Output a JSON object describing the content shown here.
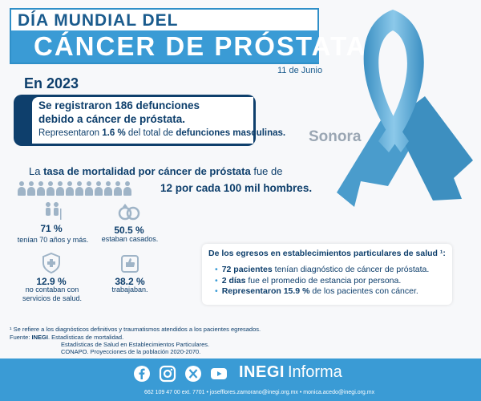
{
  "header": {
    "title_small": "DÍA MUNDIAL DEL",
    "title_big": "CÁNCER DE PRÓSTATA",
    "date": "11 de Junio"
  },
  "year": "En 2023",
  "region": "Sonora",
  "summary": {
    "line1": "Se registraron 186 defunciones",
    "line2": "debido a cáncer de próstata.",
    "line3_pre": "Representaron ",
    "line3_bold1": "1.6 %",
    "line3_mid": " del total de ",
    "line3_bold2": "defunciones masculinas."
  },
  "mortality": {
    "pre": "La ",
    "bold": "tasa de mortalidad por cáncer de próstata",
    "post": " fue de",
    "rate": "12 por cada 100 mil hombres.",
    "people_count": 12
  },
  "stats": [
    {
      "icon": "elderly-couple-icon",
      "value": "71 %",
      "label": "tenían 70 años y más."
    },
    {
      "icon": "wedding-rings-icon",
      "value": "50.5 %",
      "label": "estaban casados."
    },
    {
      "icon": "health-shield-icon",
      "value": "12.9 %",
      "label": "no contaban con servicios de salud."
    },
    {
      "icon": "work-icon",
      "value": "38.2 %",
      "label": "trabajaban."
    }
  ],
  "egresos": {
    "title": "De los egresos en establecimientos particulares de salud ¹:",
    "items": [
      {
        "bold": "72 pacientes",
        "rest": " tenían diagnóstico de cáncer de próstata."
      },
      {
        "bold": "2 días",
        "rest": " fue el promedio de estancia por persona."
      },
      {
        "bold": "Representaron 15.9 %",
        "rest": " de los pacientes con cáncer."
      }
    ]
  },
  "footnotes": {
    "note1": "¹ Se refiere a los diagnósticos definitivos y traumatismos atendidos a los pacientes egresados.",
    "source_label": "Fuente: ",
    "source_bold": "INEGI",
    "source_rest": ". Estadísticas de mortalidad.",
    "source2": "Estadísticas de Salud en Establecimientos Particulares.",
    "source3": "CONAPO. Proyecciones de la población 2020-2070."
  },
  "footer": {
    "brand_bold": "INEGI",
    "brand_rest": "Informa",
    "contact": "662 109 47 00 ext. 7701 • josefflores.zamorano@inegi.org.mx • monica.acedo@inegi.org.mx",
    "social": [
      "facebook-icon",
      "instagram-icon",
      "x-icon",
      "youtube-icon"
    ]
  },
  "colors": {
    "navy": "#0e3f6c",
    "accent_blue": "#3a9bd5",
    "ribbon": "#5fb0dd"
  }
}
